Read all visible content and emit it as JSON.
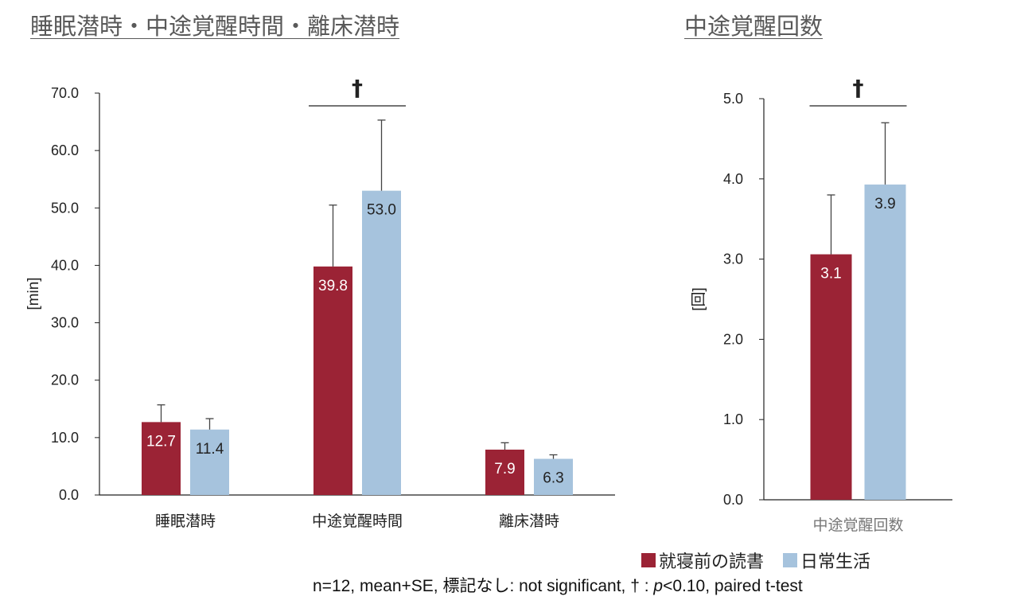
{
  "titles": {
    "left": "睡眠潜時・中途覚醒時間・離床潜時",
    "right": "中途覚醒回数"
  },
  "colors": {
    "reading": "#9B2335",
    "daily": "#A6C3DD"
  },
  "legend": {
    "reading": "就寝前の読書",
    "daily": "日常生活"
  },
  "note": {
    "prefix": "n=12, mean+SE, 標記なし: not significant, † : ",
    "p": "p",
    "suffix": "<0.10, paired t-test"
  },
  "chart_data": [
    {
      "type": "bar",
      "title": "睡眠潜時・中途覚醒時間・離床潜時",
      "ylabel": "[min]",
      "ylim": [
        0,
        70
      ],
      "yticks": [
        "0.0",
        "10.0",
        "20.0",
        "30.0",
        "40.0",
        "50.0",
        "60.0",
        "70.0"
      ],
      "categories": [
        "睡眠潜時",
        "中途覚醒時間",
        "離床潜時"
      ],
      "series": [
        {
          "name": "就寝前の読書",
          "values": [
            12.7,
            39.8,
            7.9
          ],
          "labels": [
            "12.7",
            "39.8",
            "7.9"
          ],
          "se": [
            3.0,
            10.7,
            1.2
          ]
        },
        {
          "name": "日常生活",
          "values": [
            11.4,
            53.0,
            6.3
          ],
          "labels": [
            "11.4",
            "53.0",
            "6.3"
          ],
          "se": [
            1.9,
            12.3,
            0.7
          ]
        }
      ],
      "significance": [
        {
          "category": "中途覚醒時間",
          "mark": "†"
        }
      ]
    },
    {
      "type": "bar",
      "title": "中途覚醒回数",
      "ylabel": "[回]",
      "ylim": [
        0,
        5
      ],
      "yticks": [
        "0.0",
        "1.0",
        "2.0",
        "3.0",
        "4.0",
        "5.0"
      ],
      "categories": [
        "中途覚醒回数"
      ],
      "series": [
        {
          "name": "就寝前の読書",
          "values": [
            3.06
          ],
          "labels": [
            "3.1"
          ],
          "se": [
            0.74
          ]
        },
        {
          "name": "日常生活",
          "values": [
            3.93
          ],
          "labels": [
            "3.9"
          ],
          "se": [
            0.77
          ]
        }
      ],
      "significance": [
        {
          "category": "中途覚醒回数",
          "mark": "†"
        }
      ]
    }
  ]
}
